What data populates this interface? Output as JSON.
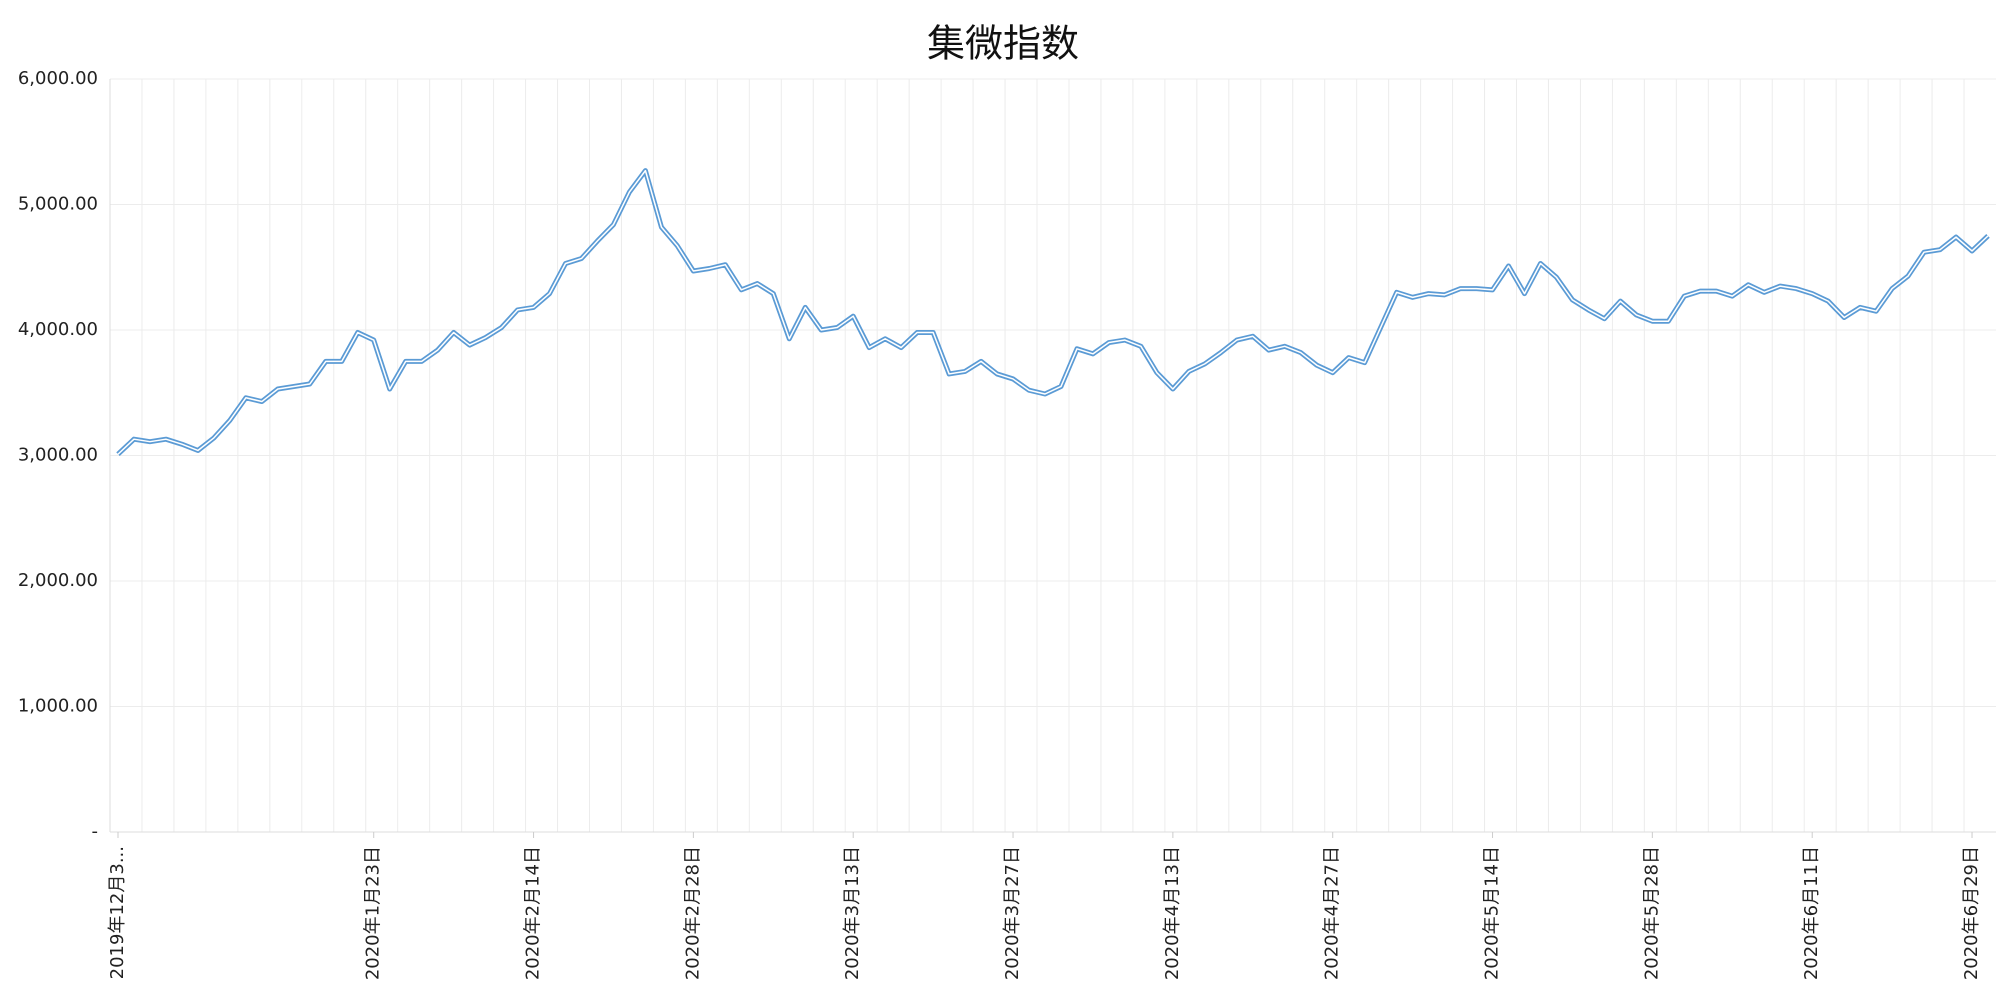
{
  "chart_data": {
    "type": "line",
    "title": "集微指数",
    "categories": [
      "2019年12月3...",
      null,
      null,
      null,
      null,
      null,
      null,
      null,
      null,
      null,
      null,
      null,
      null,
      null,
      null,
      null,
      "2020年1月23日",
      null,
      null,
      null,
      null,
      null,
      null,
      null,
      null,
      null,
      "2020年2月14日",
      null,
      null,
      null,
      null,
      null,
      null,
      null,
      null,
      null,
      "2020年2月28日",
      null,
      null,
      null,
      null,
      null,
      null,
      null,
      null,
      null,
      "2020年3月13日",
      null,
      null,
      null,
      null,
      null,
      null,
      null,
      null,
      null,
      "2020年3月27日",
      null,
      null,
      null,
      null,
      null,
      null,
      null,
      null,
      null,
      "2020年4月13日",
      null,
      null,
      null,
      null,
      null,
      null,
      null,
      null,
      null,
      "2020年4月27日",
      null,
      null,
      null,
      null,
      null,
      null,
      null,
      null,
      null,
      "2020年5月14日",
      null,
      null,
      null,
      null,
      null,
      null,
      null,
      null,
      null,
      "2020年5月28日",
      null,
      null,
      null,
      null,
      null,
      null,
      null,
      null,
      null,
      "2020年6月11日",
      null,
      null,
      null,
      null,
      null,
      null,
      null,
      null,
      null,
      "2020年6月29日",
      null
    ],
    "values": [
      3010,
      3130,
      3110,
      3130,
      3090,
      3040,
      3140,
      3280,
      3460,
      3430,
      3530,
      3550,
      3570,
      3750,
      3750,
      3980,
      3920,
      3530,
      3750,
      3750,
      3840,
      3980,
      3880,
      3940,
      4020,
      4160,
      4180,
      4290,
      4530,
      4570,
      4710,
      4840,
      5100,
      5270,
      4820,
      4670,
      4470,
      4490,
      4520,
      4320,
      4370,
      4290,
      3930,
      4180,
      4000,
      4020,
      4110,
      3860,
      3930,
      3860,
      3980,
      3980,
      3650,
      3670,
      3750,
      3650,
      3610,
      3520,
      3490,
      3550,
      3850,
      3810,
      3900,
      3920,
      3870,
      3660,
      3530,
      3670,
      3730,
      3820,
      3920,
      3950,
      3840,
      3870,
      3820,
      3720,
      3660,
      3780,
      3740,
      4020,
      4300,
      4260,
      4290,
      4280,
      4330,
      4330,
      4320,
      4510,
      4290,
      4530,
      4420,
      4240,
      4160,
      4090,
      4230,
      4120,
      4070,
      4070,
      4270,
      4310,
      4310,
      4270,
      4360,
      4300,
      4350,
      4330,
      4290,
      4230,
      4100,
      4180,
      4150,
      4330,
      4430,
      4620,
      4640,
      4740,
      4630,
      4750
    ],
    "color": "#5b9bd5",
    "ylim": [
      0,
      6000
    ],
    "yticks": [
      {
        "value": 0,
        "label": "-"
      },
      {
        "value": 1000,
        "label": "1,000.00"
      },
      {
        "value": 2000,
        "label": "2,000.00"
      },
      {
        "value": 3000,
        "label": "3,000.00"
      },
      {
        "value": 4000,
        "label": "4,000.00"
      },
      {
        "value": 5000,
        "label": "5,000.00"
      },
      {
        "value": 6000,
        "label": "6,000.00"
      }
    ],
    "grid": true
  }
}
